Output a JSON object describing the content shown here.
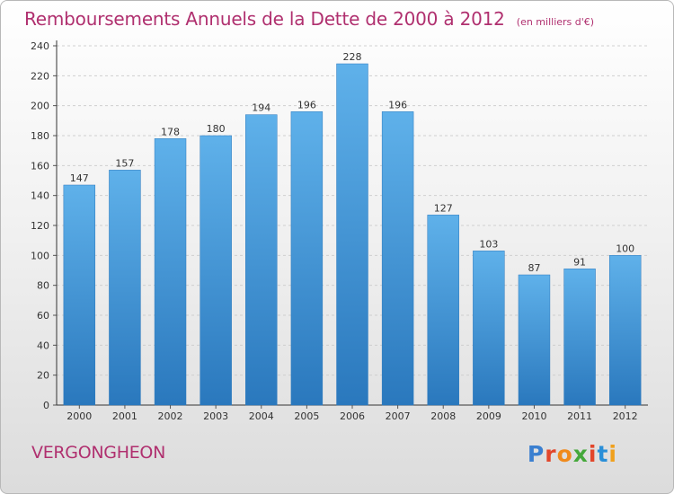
{
  "header": {
    "title": "Remboursements Annuels de la Dette de 2000 à 2012",
    "subtitle": "(en milliers d'€)"
  },
  "footer": {
    "place": "VERGONGHEON",
    "logo": "Proxiti"
  },
  "colors": {
    "title": "#b0306f",
    "bar_top": "#5fb1ea",
    "bar_bottom": "#2a78bd",
    "logo_letters": [
      "#3a7fd0",
      "#e2462b",
      "#f08a1c",
      "#44a83a",
      "#e2462b",
      "#2a8fd8",
      "#f0a01c"
    ]
  },
  "chart_data": {
    "type": "bar",
    "title": "Remboursements Annuels de la Dette de 2000 à 2012",
    "subtitle": "(en milliers d'€)",
    "categories": [
      "2000",
      "2001",
      "2002",
      "2003",
      "2004",
      "2005",
      "2006",
      "2007",
      "2008",
      "2009",
      "2010",
      "2011",
      "2012"
    ],
    "values": [
      147,
      157,
      178,
      180,
      194,
      196,
      228,
      196,
      127,
      103,
      87,
      91,
      100
    ],
    "ylim": [
      0,
      240
    ],
    "yticks": [
      0,
      20,
      40,
      60,
      80,
      100,
      120,
      140,
      160,
      180,
      200,
      220,
      240
    ],
    "grid": true,
    "data_labels": true
  }
}
